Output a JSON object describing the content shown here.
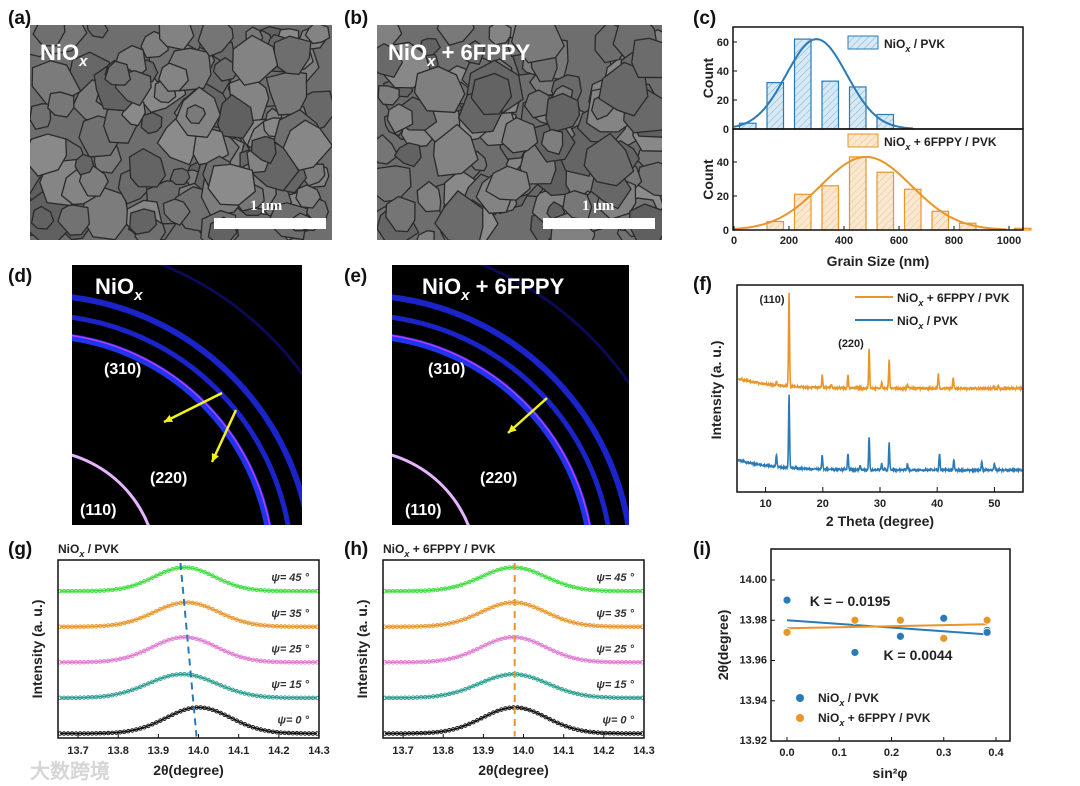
{
  "panel_labels": [
    "(a)",
    "(b)",
    "(c)",
    "(d)",
    "(e)",
    "(f)",
    "(g)",
    "(h)",
    "(i)"
  ],
  "sem": {
    "a_title": {
      "base": "NiO",
      "sub": "x",
      "rest": ""
    },
    "b_title": {
      "base": "NiO",
      "sub": "x",
      "rest": " + 6FPPY"
    },
    "scale_bar": "1 μm"
  },
  "giwaxs": {
    "d_title": {
      "base": "NiO",
      "sub": "x",
      "rest": ""
    },
    "e_title": {
      "base": "NiO",
      "sub": "x",
      "rest": " + 6FPPY"
    },
    "rings": [
      "(310)",
      "(220)",
      "(110)"
    ]
  },
  "watermark": "大数跨境",
  "colors": {
    "blue": "#2a7ab8",
    "orange": "#e8952a",
    "green": "#3ddc3d",
    "pink": "#e07ad0",
    "teal": "#2a9d8f",
    "black": "#111111"
  },
  "chart_data": [
    {
      "id": "c",
      "type": "bar",
      "xlabel": "Grain Size (nm)",
      "ylabel": "Count",
      "xlim": [
        0,
        1080
      ],
      "xticks": [
        0,
        200,
        400,
        600,
        800,
        1000
      ],
      "panels": [
        {
          "legend": {
            "base": "NiO",
            "sub": "x",
            "rest": " / PVK"
          },
          "color": "#2a7ab8",
          "ylim": [
            0,
            70
          ],
          "yticks": [
            0,
            20,
            40,
            60
          ],
          "bins": [
            50,
            150,
            250,
            350,
            450,
            550
          ],
          "values": [
            4,
            32,
            62,
            33,
            29,
            10
          ],
          "fit": {
            "center": 300,
            "height": 62,
            "sigma": 110
          }
        },
        {
          "legend": {
            "base": "NiO",
            "sub": "x",
            "rest": " + 6FPPY / PVK"
          },
          "color": "#e8952a",
          "ylim": [
            0,
            55
          ],
          "yticks": [
            0,
            20,
            40
          ],
          "bins": [
            150,
            250,
            350,
            450,
            550,
            650,
            750,
            850,
            1050
          ],
          "values": [
            5,
            21,
            26,
            43,
            34,
            24,
            11,
            4,
            1
          ],
          "fit": {
            "center": 480,
            "height": 43,
            "sigma": 165
          }
        }
      ]
    },
    {
      "id": "f",
      "type": "line",
      "xlabel": "2 Theta (degree)",
      "ylabel": "Intensity (a. u.)",
      "xlim": [
        5,
        55
      ],
      "xticks": [
        10,
        20,
        30,
        40,
        50
      ],
      "ylim": [
        0,
        100
      ],
      "annotations": [
        "(110)",
        "(220)"
      ],
      "series": [
        {
          "name": {
            "base": "NiO",
            "sub": "x",
            "rest": " + 6FPPY / PVK"
          },
          "color": "#e8952a",
          "baseline": 50,
          "peaks": [
            [
              11.9,
              2
            ],
            [
              14.1,
              45
            ],
            [
              19.9,
              6
            ],
            [
              21.5,
              1.5
            ],
            [
              24.4,
              6
            ],
            [
              28.1,
              19
            ],
            [
              30.3,
              3
            ],
            [
              31.6,
              14
            ],
            [
              34.8,
              2
            ],
            [
              40.2,
              7
            ],
            [
              42.8,
              5
            ],
            [
              49.9,
              1.5
            ],
            [
              50.7,
              1.5
            ]
          ]
        },
        {
          "name": {
            "base": "NiO",
            "sub": "x",
            "rest": " / PVK"
          },
          "color": "#2a7ab8",
          "baseline": 10.6,
          "peaks": [
            [
              11.9,
              6
            ],
            [
              14.1,
              35
            ],
            [
              19.9,
              7
            ],
            [
              24.4,
              8
            ],
            [
              26.5,
              2
            ],
            [
              28.1,
              16
            ],
            [
              30.3,
              3
            ],
            [
              31.6,
              13
            ],
            [
              34.8,
              3
            ],
            [
              40.4,
              8
            ],
            [
              42.9,
              5
            ],
            [
              47.8,
              4
            ],
            [
              50,
              3
            ]
          ]
        }
      ]
    },
    {
      "id": "g",
      "type": "scatter",
      "title": {
        "base": "NiO",
        "sub": "x",
        "rest": " / PVK"
      },
      "xlabel": "2θ(degree)",
      "ylabel": "Intensity (a. u.)",
      "xlim": [
        13.65,
        14.3
      ],
      "xticks": [
        "13.7",
        "13.8",
        "13.9",
        "14.0",
        "14.1",
        "14.2",
        "14.3"
      ],
      "ylim": [
        0,
        6
      ],
      "dashed_line": [
        [
          13.955,
          5.9
        ],
        [
          13.995,
          0.05
        ]
      ],
      "dash_color": "#2a7ab8",
      "series": [
        {
          "label": "ψ= 45 °",
          "color": "#3ddc3d",
          "baseline": 4.95,
          "center": 13.965,
          "height": 0.8,
          "sigma": 0.075
        },
        {
          "label": "ψ= 35 °",
          "color": "#e8952a",
          "baseline": 3.75,
          "center": 13.97,
          "height": 0.82,
          "sigma": 0.08
        },
        {
          "label": "ψ= 25 °",
          "color": "#e07ad0",
          "baseline": 2.55,
          "center": 13.965,
          "height": 0.85,
          "sigma": 0.08
        },
        {
          "label": "ψ= 15 °",
          "color": "#2a9d8f",
          "baseline": 1.35,
          "center": 13.96,
          "height": 0.8,
          "sigma": 0.085
        },
        {
          "label": "ψ= 0 °",
          "color": "#111111",
          "baseline": 0.15,
          "center": 14.0,
          "height": 0.88,
          "sigma": 0.08
        }
      ]
    },
    {
      "id": "h",
      "type": "scatter",
      "title": {
        "base": "NiO",
        "sub": "x",
        "rest": " + 6FPPY / PVK"
      },
      "xlabel": "2θ(degree)",
      "ylabel": "Intensity (a. u.)",
      "xlim": [
        13.65,
        14.3
      ],
      "xticks": [
        "13.7",
        "13.8",
        "13.9",
        "14.0",
        "14.1",
        "14.2",
        "14.3"
      ],
      "ylim": [
        0,
        6
      ],
      "dashed_line": [
        [
          13.978,
          5.9
        ],
        [
          13.978,
          0.05
        ]
      ],
      "dash_color": "#e8952a",
      "series": [
        {
          "label": "ψ= 45 °",
          "color": "#3ddc3d",
          "baseline": 4.95,
          "center": 13.975,
          "height": 0.8,
          "sigma": 0.08
        },
        {
          "label": "ψ= 35 °",
          "color": "#e8952a",
          "baseline": 3.75,
          "center": 13.975,
          "height": 0.82,
          "sigma": 0.08
        },
        {
          "label": "ψ= 25 °",
          "color": "#e07ad0",
          "baseline": 2.55,
          "center": 13.975,
          "height": 0.85,
          "sigma": 0.08
        },
        {
          "label": "ψ= 15 °",
          "color": "#2a9d8f",
          "baseline": 1.35,
          "center": 13.975,
          "height": 0.8,
          "sigma": 0.085
        },
        {
          "label": "ψ= 0 °",
          "color": "#111111",
          "baseline": 0.15,
          "center": 13.978,
          "height": 0.88,
          "sigma": 0.08
        }
      ]
    },
    {
      "id": "i",
      "type": "scatter",
      "xlabel": "sin²φ",
      "ylabel": "2θ(degree)",
      "xlim": [
        -0.03,
        0.43
      ],
      "xticks": [
        "0.0",
        "0.1",
        "0.2",
        "0.3",
        "0.4"
      ],
      "ylim": [
        13.92,
        14.013
      ],
      "yticks": [
        "13.92",
        "13.94",
        "13.96",
        "13.98",
        "14.00"
      ],
      "series": [
        {
          "name": {
            "base": "NiO",
            "sub": "x",
            "rest": " / PVK"
          },
          "color": "#2a7ab8",
          "slope_label": "K = – 0.0195",
          "x": [
            0,
            0.13,
            0.217,
            0.3,
            0.383,
            0.383
          ],
          "y": [
            13.99,
            13.964,
            13.972,
            13.981,
            13.975,
            13.974
          ],
          "fit": [
            [
              0,
              13.98
            ],
            [
              0.383,
              13.973
            ]
          ]
        },
        {
          "name": {
            "base": "NiO",
            "sub": "x",
            "rest": " + 6FPPY / PVK"
          },
          "color": "#e8952a",
          "slope_label": "K = 0.0044",
          "x": [
            0,
            0.13,
            0.217,
            0.3,
            0.383
          ],
          "y": [
            13.974,
            13.98,
            13.98,
            13.971,
            13.98
          ],
          "fit": [
            [
              0,
              13.976
            ],
            [
              0.383,
              13.978
            ]
          ]
        }
      ]
    }
  ]
}
